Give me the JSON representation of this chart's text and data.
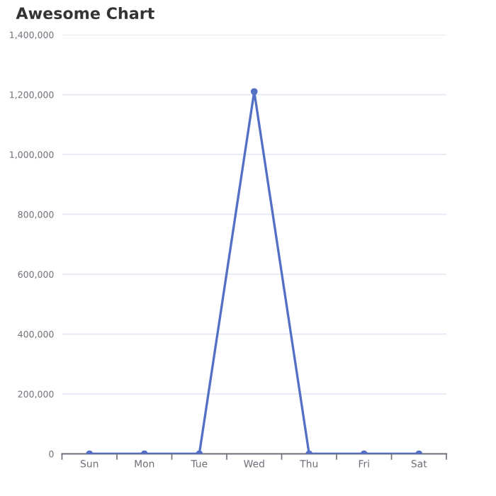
{
  "chart_data": {
    "type": "line",
    "title": "Awesome Chart",
    "categories": [
      "Sun",
      "Mon",
      "Tue",
      "Wed",
      "Thu",
      "Fri",
      "Sat"
    ],
    "series": [
      {
        "color": "#5470c6",
        "values": [
          0,
          0,
          0,
          1210000,
          0,
          0,
          0
        ]
      }
    ],
    "ylim": [
      0,
      1400000
    ],
    "yticks": [
      {
        "value": 0,
        "label": "0"
      },
      {
        "value": 200000,
        "label": "200,000"
      },
      {
        "value": 400000,
        "label": "400,000"
      },
      {
        "value": 600000,
        "label": "600,000"
      },
      {
        "value": 800000,
        "label": "800,000"
      },
      {
        "value": 1000000,
        "label": "1,000,000"
      },
      {
        "value": 1200000,
        "label": "1,200,000"
      },
      {
        "value": 1400000,
        "label": "1,400,000"
      }
    ],
    "grid": "y",
    "marker": "circle",
    "line_style": "solid"
  }
}
